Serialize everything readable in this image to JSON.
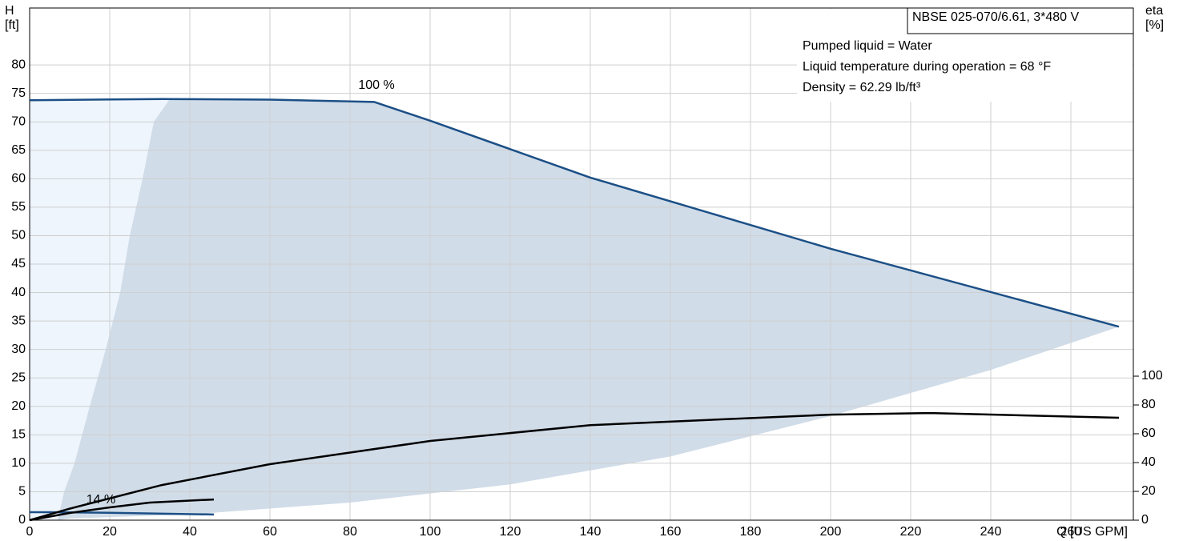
{
  "chart_data": {
    "type": "line",
    "title": "NBSE 025-070/6.61, 3*480 V",
    "info": [
      "Pumped liquid = Water",
      "Liquid temperature during operation = 68 °F",
      "Density = 62.29 lb/ft³"
    ],
    "ylabel": [
      "H",
      "[ft]"
    ],
    "y2label": [
      "eta",
      "[%]"
    ],
    "xlabel": "Q [US GPM]",
    "xlim": [
      0,
      275.6
    ],
    "xticks": [
      0,
      20,
      40,
      60,
      80,
      100,
      120,
      140,
      160,
      180,
      200,
      220,
      240,
      260
    ],
    "ylim": [
      0,
      90
    ],
    "yticks": [
      0,
      5,
      10,
      15,
      20,
      25,
      30,
      35,
      40,
      45,
      50,
      55,
      60,
      65,
      70,
      75,
      80
    ],
    "y2lim": [
      0,
      355.6
    ],
    "y2ticks": [
      0,
      20,
      40,
      60,
      80,
      100
    ],
    "grid": true,
    "areas": [
      {
        "color": "#eef5fd",
        "x": [
          0,
          0,
          35,
          31,
          28.2,
          25,
          22.6,
          19,
          15,
          11.2,
          8.6,
          7
        ],
        "y": [
          0,
          73.8,
          74,
          70,
          60,
          50,
          40,
          30,
          20,
          10,
          5,
          0
        ]
      },
      {
        "color": "#d0dce8",
        "x": [
          35,
          60,
          86,
          100,
          140,
          200,
          272,
          240,
          200,
          160,
          120,
          80,
          40,
          10,
          7,
          8.6,
          11.2,
          15,
          19,
          22.6,
          25,
          28.2,
          31
        ],
        "y": [
          74,
          73.9,
          73.5,
          70.2,
          60.2,
          47.7,
          34.0,
          26.4,
          18.3,
          11.2,
          6.3,
          3.1,
          1.0,
          0.3,
          0,
          5,
          10,
          20,
          30,
          40,
          50,
          60,
          70
        ]
      }
    ],
    "series": [
      {
        "name": "100 %",
        "color": "#1b4f86",
        "x": [
          0,
          33,
          60,
          86,
          100,
          140,
          200,
          272
        ],
        "values": [
          73.8,
          74,
          73.9,
          73.5,
          70.2,
          60.2,
          47.7,
          34.0
        ]
      },
      {
        "name": "14 %",
        "color": "#1b4f86",
        "x": [
          0,
          5,
          20,
          46
        ],
        "values": [
          1.4,
          1.4,
          1.3,
          1.0
        ]
      },
      {
        "color": "#000000",
        "axis": "y2",
        "x": [
          0,
          10,
          33,
          60,
          100,
          140,
          200,
          225,
          272
        ],
        "values": [
          0,
          8,
          24.4,
          38.9,
          55,
          66,
          73.3,
          74.4,
          71.1
        ]
      },
      {
        "color": "#000000",
        "axis": "y2",
        "x": [
          0,
          10,
          20,
          30,
          46
        ],
        "values": [
          0,
          5,
          8.9,
          12.2,
          14.4
        ]
      }
    ]
  }
}
